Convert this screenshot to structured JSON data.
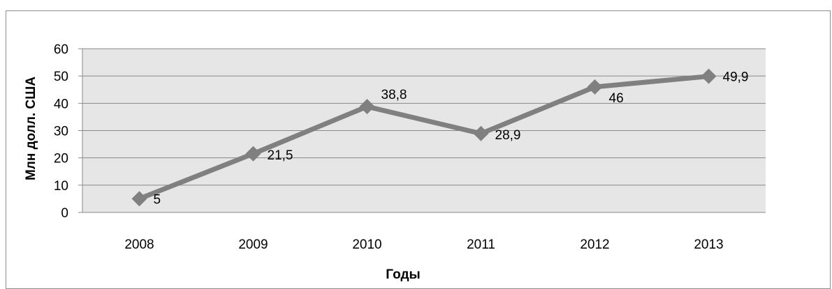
{
  "chart_data": {
    "type": "line",
    "x": [
      "2008",
      "2009",
      "2010",
      "2011",
      "2012",
      "2013"
    ],
    "series": [
      {
        "values": [
          5,
          21.5,
          38.8,
          28.9,
          46,
          49.9
        ],
        "data_labels": [
          "5",
          "21,5",
          "38,8",
          "28,9",
          "46",
          "49,9"
        ],
        "color": "#808080",
        "marker": "diamond"
      }
    ],
    "ylabel": "Млн долл. США",
    "xlabel": "Годы",
    "ylim": [
      0,
      60
    ],
    "yticks": [
      "0",
      "10",
      "20",
      "30",
      "40",
      "50",
      "60"
    ],
    "grid": true,
    "plot_background": "#e6e6e6",
    "gridline_color": "#888888",
    "legend": "none"
  }
}
